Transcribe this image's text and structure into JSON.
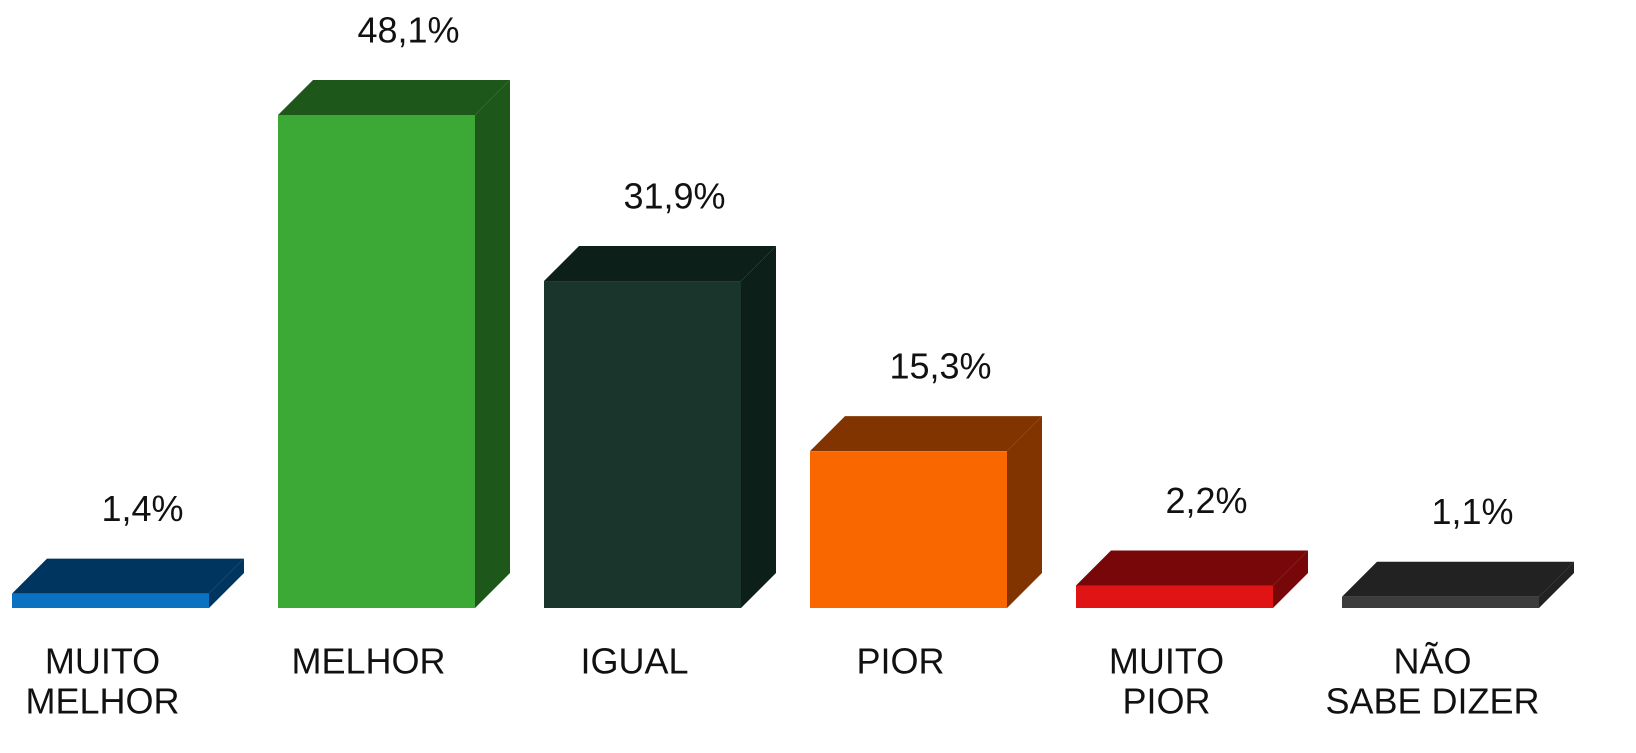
{
  "chart_data": {
    "type": "bar3d",
    "categories": [
      [
        "MUITO",
        "MELHOR"
      ],
      [
        "MELHOR"
      ],
      [
        "IGUAL"
      ],
      [
        "PIOR"
      ],
      [
        "MUITO",
        "PIOR"
      ],
      [
        "NÃO",
        "SABE DIZER"
      ]
    ],
    "values": [
      1.4,
      48.1,
      31.9,
      15.3,
      2.2,
      1.1
    ],
    "value_labels": [
      "1,4%",
      "48,1%",
      "31,9%",
      "15,3%",
      "2,2%",
      "1,1%"
    ],
    "colors": [
      "#0a72c0",
      "#3ca835",
      "#1a362c",
      "#f96800",
      "#e01414",
      "#3c3c3c"
    ],
    "dark_colors": [
      "#00355f",
      "#1d571a",
      "#0c1f18",
      "#823400",
      "#780709",
      "#222222"
    ]
  }
}
